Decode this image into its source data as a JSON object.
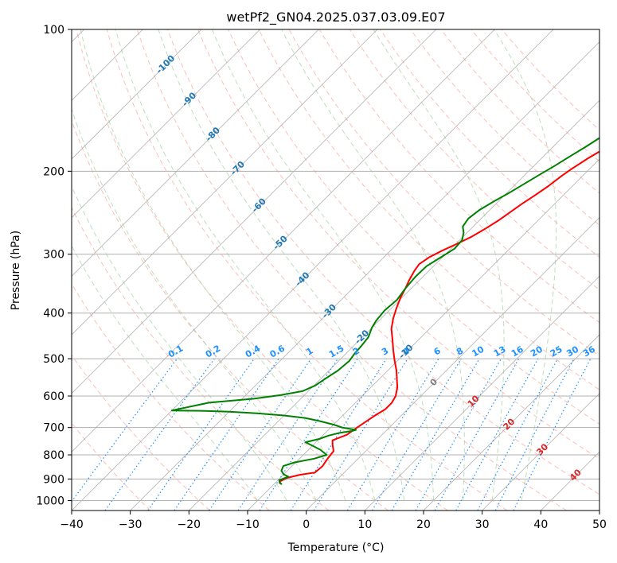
{
  "chart_data": {
    "type": "line",
    "title": "wetPf2_GN04.2025.037.03.09.E07",
    "xlabel": "Temperature (°C)",
    "ylabel": "Pressure (hPa)",
    "xlim": [
      -40,
      50
    ],
    "ylim": [
      1050,
      100
    ],
    "y_scale": "log",
    "grid": true,
    "x_ticks": [
      -40,
      -30,
      -20,
      -10,
      0,
      10,
      20,
      30,
      40,
      50
    ],
    "x_tick_labels": [
      "−40",
      "−30",
      "−20",
      "−10",
      "0",
      "10",
      "20",
      "30",
      "40",
      "50"
    ],
    "y_ticks": [
      100,
      200,
      300,
      400,
      500,
      600,
      700,
      800,
      900,
      1000
    ],
    "y_tick_labels": [
      "100",
      "200",
      "300",
      "400",
      "500",
      "600",
      "700",
      "800",
      "900",
      "1000"
    ],
    "series": [
      {
        "color": "#ff0000",
        "points": [
          [
            -9.0,
            922
          ],
          [
            -9.5,
            912
          ],
          [
            -8.8,
            895
          ],
          [
            -7.2,
            882
          ],
          [
            -5.0,
            872
          ],
          [
            -4.8,
            845
          ],
          [
            -5.2,
            815
          ],
          [
            -5.5,
            785
          ],
          [
            -6.8,
            760
          ],
          [
            -7.5,
            745
          ],
          [
            -6.0,
            725
          ],
          [
            -5.8,
            715
          ],
          [
            -5.5,
            700
          ],
          [
            -5.0,
            680
          ],
          [
            -4.5,
            660
          ],
          [
            -3.8,
            640
          ],
          [
            -3.8,
            620
          ],
          [
            -4.3,
            600
          ],
          [
            -5.5,
            575
          ],
          [
            -6.8,
            555
          ],
          [
            -8.5,
            530
          ],
          [
            -10.5,
            505
          ],
          [
            -12.5,
            480
          ],
          [
            -14.5,
            455
          ],
          [
            -16.5,
            432
          ],
          [
            -18.0,
            410
          ],
          [
            -19.2,
            390
          ],
          [
            -20.2,
            372
          ],
          [
            -21.0,
            355
          ],
          [
            -21.8,
            340
          ],
          [
            -22.5,
            325
          ],
          [
            -22.8,
            315
          ],
          [
            -22.3,
            305
          ],
          [
            -21.2,
            295
          ],
          [
            -19.8,
            285
          ],
          [
            -18.5,
            275
          ],
          [
            -17.6,
            265
          ],
          [
            -16.8,
            255
          ],
          [
            -16.2,
            245
          ],
          [
            -15.6,
            235
          ],
          [
            -14.8,
            225
          ],
          [
            -14.1,
            215
          ],
          [
            -13.6,
            205
          ],
          [
            -13.1,
            198
          ],
          [
            -12.1,
            188
          ],
          [
            -10.8,
            178
          ],
          [
            -9.5,
            168
          ],
          [
            -8.4,
            158
          ],
          [
            -7.3,
            148
          ],
          [
            -6.3,
            140
          ],
          [
            -5.3,
            132
          ],
          [
            -4.3,
            124
          ],
          [
            -3.3,
            116
          ],
          [
            -2.3,
            110
          ],
          [
            -1.1,
            104
          ],
          [
            -0.3,
            100
          ]
        ]
      },
      {
        "color": "#008000",
        "points": [
          [
            -8.6,
            925
          ],
          [
            -9.3,
            915
          ],
          [
            -9.8,
            905
          ],
          [
            -8.8,
            890
          ],
          [
            -10.0,
            880
          ],
          [
            -11.0,
            865
          ],
          [
            -11.5,
            845
          ],
          [
            -10.2,
            830
          ],
          [
            -7.5,
            815
          ],
          [
            -6.0,
            800
          ],
          [
            -8.0,
            780
          ],
          [
            -10.0,
            765
          ],
          [
            -11.8,
            752
          ],
          [
            -10.0,
            740
          ],
          [
            -9.0,
            728
          ],
          [
            -7.5,
            718
          ],
          [
            -5.8,
            712
          ],
          [
            -5.3,
            708
          ],
          [
            -8.0,
            700
          ],
          [
            -10.0,
            690
          ],
          [
            -13.0,
            678
          ],
          [
            -16.0,
            668
          ],
          [
            -20.0,
            660
          ],
          [
            -25.0,
            653
          ],
          [
            -30.0,
            648
          ],
          [
            -35.0,
            645
          ],
          [
            -40.0,
            644
          ],
          [
            -35.0,
            620
          ],
          [
            -28.0,
            608
          ],
          [
            -24.0,
            597
          ],
          [
            -21.0,
            586
          ],
          [
            -19.8,
            570
          ],
          [
            -19.2,
            550
          ],
          [
            -18.5,
            530
          ],
          [
            -18.2,
            505
          ],
          [
            -18.5,
            490
          ],
          [
            -18.7,
            470
          ],
          [
            -19.0,
            450
          ],
          [
            -20.0,
            430
          ],
          [
            -20.5,
            415
          ],
          [
            -20.8,
            395
          ],
          [
            -20.5,
            375
          ],
          [
            -21.0,
            355
          ],
          [
            -21.3,
            335
          ],
          [
            -21.2,
            318
          ],
          [
            -20.3,
            305
          ],
          [
            -19.4,
            292
          ],
          [
            -19.6,
            280
          ],
          [
            -20.6,
            270
          ],
          [
            -21.8,
            262
          ],
          [
            -22.2,
            252
          ],
          [
            -21.8,
            242
          ],
          [
            -20.8,
            232
          ],
          [
            -19.6,
            222
          ],
          [
            -18.5,
            212
          ],
          [
            -17.5,
            203
          ],
          [
            -16.5,
            195
          ],
          [
            -15.5,
            186
          ],
          [
            -14.5,
            178
          ],
          [
            -13.6,
            170
          ],
          [
            -12.5,
            162
          ],
          [
            -11.3,
            152
          ],
          [
            -10.2,
            142
          ],
          [
            -9.0,
            134
          ],
          [
            -7.7,
            126
          ],
          [
            -6.5,
            120
          ],
          [
            -5.2,
            114
          ],
          [
            -3.7,
            108
          ],
          [
            -2.1,
            102
          ],
          [
            -1.0,
            98
          ]
        ]
      }
    ],
    "dry_adiabats": [
      -30,
      -20,
      -10,
      0,
      10,
      20,
      30,
      40,
      50,
      60,
      70,
      80,
      90,
      100,
      110,
      120,
      130,
      140,
      150,
      160
    ],
    "moist_adiabats": [
      -10,
      -5,
      0,
      5,
      10,
      15,
      20,
      25,
      30,
      35
    ],
    "isotherm_labels": [
      {
        "t": -100,
        "p": 118,
        "text": "-100"
      },
      {
        "t": -90,
        "p": 140,
        "text": "-90"
      },
      {
        "t": -80,
        "p": 166,
        "text": "-80"
      },
      {
        "t": -70,
        "p": 196,
        "text": "-70"
      },
      {
        "t": -60,
        "p": 235,
        "text": "-60"
      },
      {
        "t": -50,
        "p": 282,
        "text": "-50"
      },
      {
        "t": -40,
        "p": 337,
        "text": "-40"
      },
      {
        "t": -30,
        "p": 394,
        "text": "-30"
      },
      {
        "t": -20,
        "p": 447,
        "text": "-20"
      },
      {
        "t": -10,
        "p": 480,
        "text": "-10"
      },
      {
        "t": 0,
        "p": 558,
        "text": "0"
      },
      {
        "t": 10,
        "p": 612,
        "text": "10"
      },
      {
        "t": 20,
        "p": 685,
        "text": "20"
      },
      {
        "t": 30,
        "p": 775,
        "text": "30"
      },
      {
        "t": 40,
        "p": 878,
        "text": "40"
      }
    ],
    "mixing_ratio_lines": [
      {
        "value": 0.1,
        "label": "0.1"
      },
      {
        "value": 0.2,
        "label": "0.2"
      },
      {
        "value": 0.4,
        "label": "0.4"
      },
      {
        "value": 0.6,
        "label": "0.6"
      },
      {
        "value": 1,
        "label": "1"
      },
      {
        "value": 1.5,
        "label": "1.5"
      },
      {
        "value": 2,
        "label": "2"
      },
      {
        "value": 3,
        "label": "3"
      },
      {
        "value": 4,
        "label": "4"
      },
      {
        "value": 6,
        "label": "6"
      },
      {
        "value": 8,
        "label": "8"
      },
      {
        "value": 10,
        "label": "10"
      },
      {
        "value": 13,
        "label": "13"
      },
      {
        "value": 16,
        "label": "16"
      },
      {
        "value": 20,
        "label": "20"
      },
      {
        "value": 25,
        "label": "25"
      },
      {
        "value": 30,
        "label": "30"
      },
      {
        "value": 36,
        "label": "36"
      }
    ],
    "colors": {
      "temperature": "#ff0000",
      "dewpoint": "#008000",
      "isotherm_cold": "#1f77b4",
      "isotherm_warm": "#d62728",
      "isotherm_zero": "#808080",
      "mixing_ratio": "#1e90ff",
      "dry_adiabat": "#fa8072",
      "moist_adiabat": "#8fc98f",
      "grid": "#b0b0b0",
      "skew_lines": "#a0a0a0"
    }
  }
}
